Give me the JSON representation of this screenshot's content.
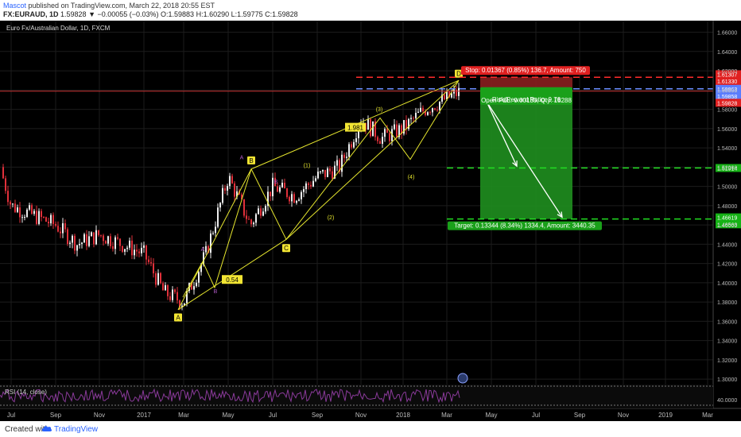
{
  "header": {
    "author": "Mascot",
    "published": "published on TradingView.com, March 22, 2018 20:55 EST",
    "symbol": "FX:EURAUD, 1D",
    "ohlc_text": "1.59828 ▼ −0.00055 (−0.03%) O:1.59883 H:1.60290 L:1.59775 C:1.59828"
  },
  "footer": {
    "created": "Created with",
    "brand": "TradingView"
  },
  "colors": {
    "bg": "#000000",
    "grid": "#1c1c1c",
    "up": "#eeeeee",
    "down": "#e0303a",
    "accent_red": "#ff2b2b",
    "accent_blue": "#6b8cff",
    "accent_green": "#22dd22",
    "pattern": "#e6e62e",
    "rsi": "#8a3a9a"
  },
  "chart_data": {
    "type": "line",
    "title": "Euro Fx/Australian Dollar, 1D, FXCM",
    "x_ticks": [
      "Jul",
      "Sep",
      "Nov",
      "2017",
      "Mar",
      "May",
      "Jul",
      "Sep",
      "Nov",
      "2018",
      "Mar",
      "May",
      "Jul",
      "Sep",
      "Nov",
      "2019",
      "Mar"
    ],
    "y_ticks": [
      "1.66000",
      "1.64000",
      "1.62000",
      "1.60000",
      "1.58000",
      "1.56000",
      "1.54000",
      "1.52000",
      "1.50000",
      "1.48000",
      "1.46000",
      "1.44000",
      "1.42000",
      "1.40000",
      "1.38000",
      "1.36000",
      "1.34000",
      "1.32000",
      "1.30000"
    ],
    "ylim": [
      1.296,
      1.672
    ],
    "series": [
      {
        "name": "",
        "x": [
          "2016-06",
          "2016-07",
          "2016-08",
          "2016-09",
          "2016-10",
          "2016-11",
          "2016-12",
          "2017-01",
          "2017-02",
          "2017-03",
          "2017-04",
          "2017-05",
          "2017-06",
          "2017-07",
          "2017-08",
          "2017-09",
          "2017-10",
          "2017-11",
          "2017-12",
          "2018-01",
          "2018-02",
          "2018-03"
        ],
        "values": [
          1.52,
          1.48,
          1.47,
          1.46,
          1.44,
          1.45,
          1.44,
          1.43,
          1.39,
          1.38,
          1.43,
          1.51,
          1.46,
          1.5,
          1.49,
          1.51,
          1.52,
          1.57,
          1.55,
          1.56,
          1.58,
          1.598
        ]
      }
    ],
    "price_labels": [
      {
        "text": "1.61307",
        "color": "#e02020"
      },
      {
        "text": "1.61330",
        "color": "#e02020"
      },
      {
        "text": "1.59963",
        "color": "#5a7dff"
      },
      {
        "text": "1.59858",
        "color": "#5a7dff"
      },
      {
        "text": "1.59828",
        "color": "#e02020"
      },
      {
        "text": "1.51914",
        "color": "#16b216"
      },
      {
        "text": "1.46619",
        "color": "#16b216"
      },
      {
        "text": "1.46563",
        "color": "#16b216"
      }
    ],
    "position": {
      "stop_label": "Stop: 0.01367 (0.85%) 136.7, Amount: 750",
      "pnl_label": "Open P&L: 0.00135, Qty: 18288",
      "rr_label": "Risk/Reward Ratio: 9.76",
      "target_label": "Target: 0.13344 (8.34%) 1334.4, Amount: 3440.35",
      "stop_price": 1.6133,
      "entry_price": 1.5996,
      "target1_price": 1.5191,
      "target2_price": 1.4662
    },
    "annotations": [
      "A",
      "B",
      "C",
      "D",
      "A",
      "B",
      "A",
      "B",
      "(1)",
      "(2)",
      "(3)",
      "(4)",
      "(5)",
      "1.981",
      "0.54"
    ],
    "rsi_label": "RSI (14, close)",
    "rsi_value": "40.0000"
  }
}
